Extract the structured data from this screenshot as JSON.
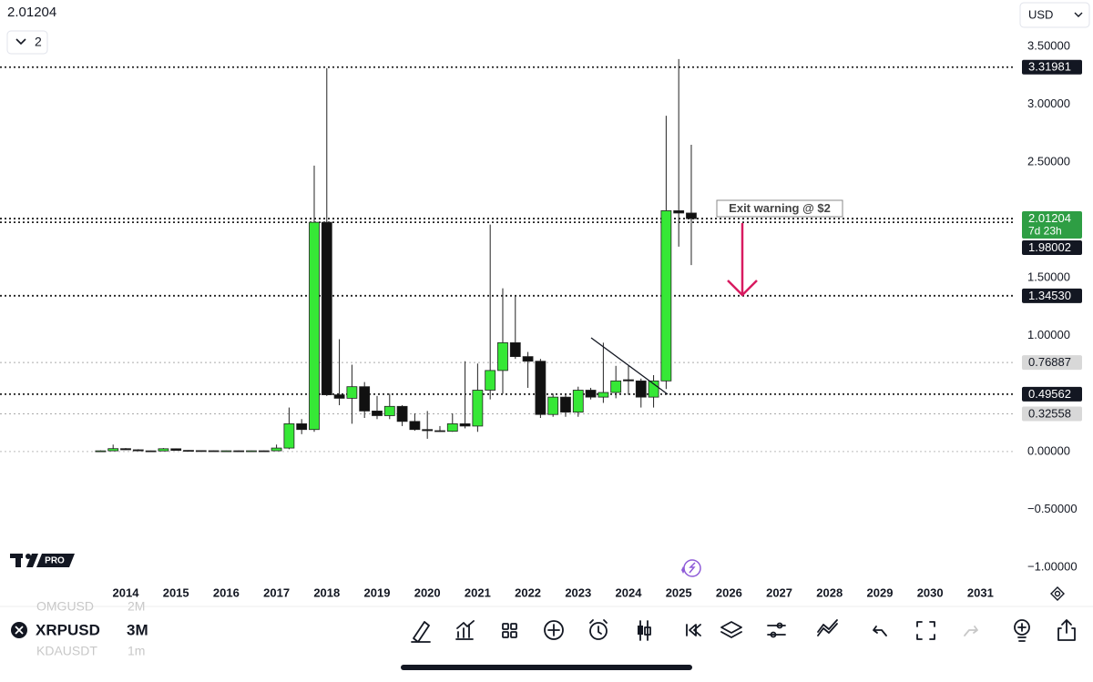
{
  "top_price": "2.01204",
  "indicator_count": "2",
  "currency": "USD",
  "logo": "PRO",
  "toolbar": {
    "symbol": "XRPUSD",
    "interval": "3M",
    "watchlist": [
      {
        "symbol": "OMGUSD",
        "interval": "2M"
      },
      {
        "symbol": "KDAUSDT",
        "interval": "1m"
      }
    ]
  },
  "chart_data": {
    "type": "candlestick",
    "x": [
      2013.5,
      2013.75,
      2014,
      2014.25,
      2014.5,
      2014.75,
      2015,
      2015.25,
      2015.5,
      2015.75,
      2016,
      2016.25,
      2016.5,
      2016.75,
      2017,
      2017.25,
      2017.5,
      2017.75,
      2018,
      2018.25,
      2018.5,
      2018.75,
      2019,
      2019.25,
      2019.5,
      2019.75,
      2020,
      2020.25,
      2020.5,
      2020.75,
      2021,
      2021.25,
      2021.5,
      2021.75,
      2022,
      2022.25,
      2022.5,
      2022.75,
      2023,
      2023.25,
      2023.5,
      2023.75,
      2024,
      2024.25,
      2024.5,
      2024.75,
      2025,
      2025.25
    ],
    "open": [
      0.005,
      0.006,
      0.025,
      0.015,
      0.006,
      0.005,
      0.024,
      0.01,
      0.008,
      0.007,
      0.006,
      0.0065,
      0.006,
      0.0065,
      0.0064,
      0.03,
      0.24,
      0.19,
      1.98,
      0.49,
      0.46,
      0.56,
      0.35,
      0.31,
      0.39,
      0.26,
      0.19,
      0.18,
      0.175,
      0.24,
      0.22,
      0.53,
      0.7,
      0.94,
      0.82,
      0.78,
      0.32,
      0.47,
      0.34,
      0.53,
      0.47,
      0.51,
      0.62,
      0.61,
      0.47,
      0.61,
      2.08,
      2.06
    ],
    "high": [
      0.01,
      0.06,
      0.03,
      0.02,
      0.008,
      0.03,
      0.027,
      0.012,
      0.01,
      0.009,
      0.008,
      0.009,
      0.008,
      0.009,
      0.06,
      0.38,
      0.28,
      2.47,
      3.31,
      0.97,
      0.75,
      0.6,
      0.48,
      0.5,
      0.4,
      0.33,
      0.35,
      0.22,
      0.33,
      0.78,
      0.76,
      1.96,
      1.41,
      1.35,
      0.86,
      0.8,
      0.5,
      0.5,
      0.56,
      0.55,
      0.94,
      0.74,
      0.74,
      0.63,
      0.66,
      2.9,
      3.39,
      2.65
    ],
    "low": [
      0.003,
      0.005,
      0.012,
      0.004,
      0.004,
      0.004,
      0.008,
      0.007,
      0.006,
      0.005,
      0.005,
      0.005,
      0.005,
      0.005,
      0.005,
      0.02,
      0.15,
      0.17,
      0.48,
      0.4,
      0.24,
      0.29,
      0.28,
      0.28,
      0.22,
      0.18,
      0.11,
      0.17,
      0.17,
      0.2,
      0.17,
      0.45,
      0.5,
      0.8,
      0.55,
      0.29,
      0.3,
      0.3,
      0.3,
      0.45,
      0.42,
      0.46,
      0.49,
      0.38,
      0.38,
      0.54,
      1.77,
      1.61
    ],
    "close": [
      0.006,
      0.025,
      0.015,
      0.006,
      0.005,
      0.024,
      0.01,
      0.008,
      0.007,
      0.006,
      0.0065,
      0.006,
      0.0065,
      0.0064,
      0.03,
      0.24,
      0.19,
      1.98,
      0.49,
      0.46,
      0.56,
      0.35,
      0.31,
      0.39,
      0.26,
      0.19,
      0.18,
      0.175,
      0.24,
      0.22,
      0.53,
      0.7,
      0.94,
      0.82,
      0.78,
      0.32,
      0.47,
      0.34,
      0.53,
      0.47,
      0.51,
      0.61,
      0.61,
      0.47,
      0.61,
      2.08,
      2.06,
      2.01204
    ],
    "up_color": "#36e836",
    "down_color": "#111111",
    "wick_color": "#222222",
    "xlim": [
      2011.5,
      2031.7
    ],
    "xticks": [
      2014,
      2015,
      2016,
      2017,
      2018,
      2019,
      2020,
      2021,
      2022,
      2023,
      2024,
      2025,
      2026,
      2027,
      2028,
      2029,
      2030,
      2031
    ],
    "ylim": [
      -1.33,
      3.9
    ],
    "yticks": [
      {
        "value": -1,
        "label": "−1.00000"
      },
      {
        "value": -0.5,
        "label": "−0.50000"
      },
      {
        "value": 0,
        "label": "0.00000"
      },
      {
        "value": 0.5,
        "label": "0.50000"
      },
      {
        "value": 1,
        "label": "1.00000"
      },
      {
        "value": 1.5,
        "label": "1.50000"
      },
      {
        "value": 2,
        "label": "2.00000"
      },
      {
        "value": 2.5,
        "label": "2.50000"
      },
      {
        "value": 3,
        "label": "3.00000"
      },
      {
        "value": 3.5,
        "label": "3.50000"
      }
    ],
    "zero_line": true,
    "levels": [
      {
        "value": 3.31981,
        "label": "3.31981",
        "color": "#131722"
      },
      {
        "value": 2.01204,
        "label": "2.01204",
        "countdown": "7d 23h",
        "color": "#2e9e44"
      },
      {
        "value": 1.98002,
        "label": "1.98002",
        "color": "#131722"
      },
      {
        "value": 1.3453,
        "label": "1.34530",
        "color": "#131722"
      },
      {
        "value": 0.76887,
        "label": "0.76887",
        "color": "#d8d8d8"
      },
      {
        "value": 0.49562,
        "label": "0.49562",
        "color": "#131722"
      },
      {
        "value": 0.32558,
        "label": "0.32558",
        "color": "#d8d8d8"
      }
    ],
    "annotation": "Exit warning @ $2"
  }
}
